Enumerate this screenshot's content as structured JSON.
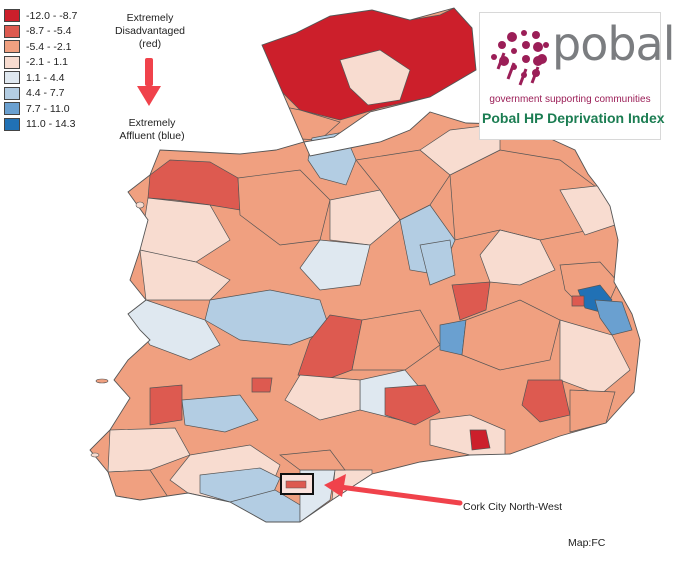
{
  "legend": {
    "items": [
      {
        "label": "-12.0 - -8.7",
        "color": "#cc1f2b"
      },
      {
        "label": "-8.7 - -5.4",
        "color": "#dd5a50"
      },
      {
        "label": "-5.4 - -2.1",
        "color": "#f0a080"
      },
      {
        "label": "-2.1 - 1.1",
        "color": "#f8dcd0"
      },
      {
        "label": "1.1 - 4.4",
        "color": "#dfe8f0"
      },
      {
        "label": "4.4 - 7.7",
        "color": "#b3cde3"
      },
      {
        "label": "7.7 - 11.0",
        "color": "#6aa0d0"
      },
      {
        "label": "11.0 - 14.3",
        "color": "#2171b5"
      }
    ]
  },
  "annotations": {
    "disadvantaged": "Extremely Disadvantaged (red)",
    "affluent": "Extremely Affluent (blue)",
    "arrow_color": "#f0424b"
  },
  "logo": {
    "word": "pobal",
    "tagline": "government supporting communities",
    "title": "Pobal HP Deprivation Index",
    "dots_color": "#9b1e57",
    "title_color": "#1b7d52"
  },
  "callout": {
    "label": "Cork City North-West",
    "color": "#f0424b"
  },
  "credit": "Map:FC",
  "map": {
    "outline": "#555555"
  }
}
